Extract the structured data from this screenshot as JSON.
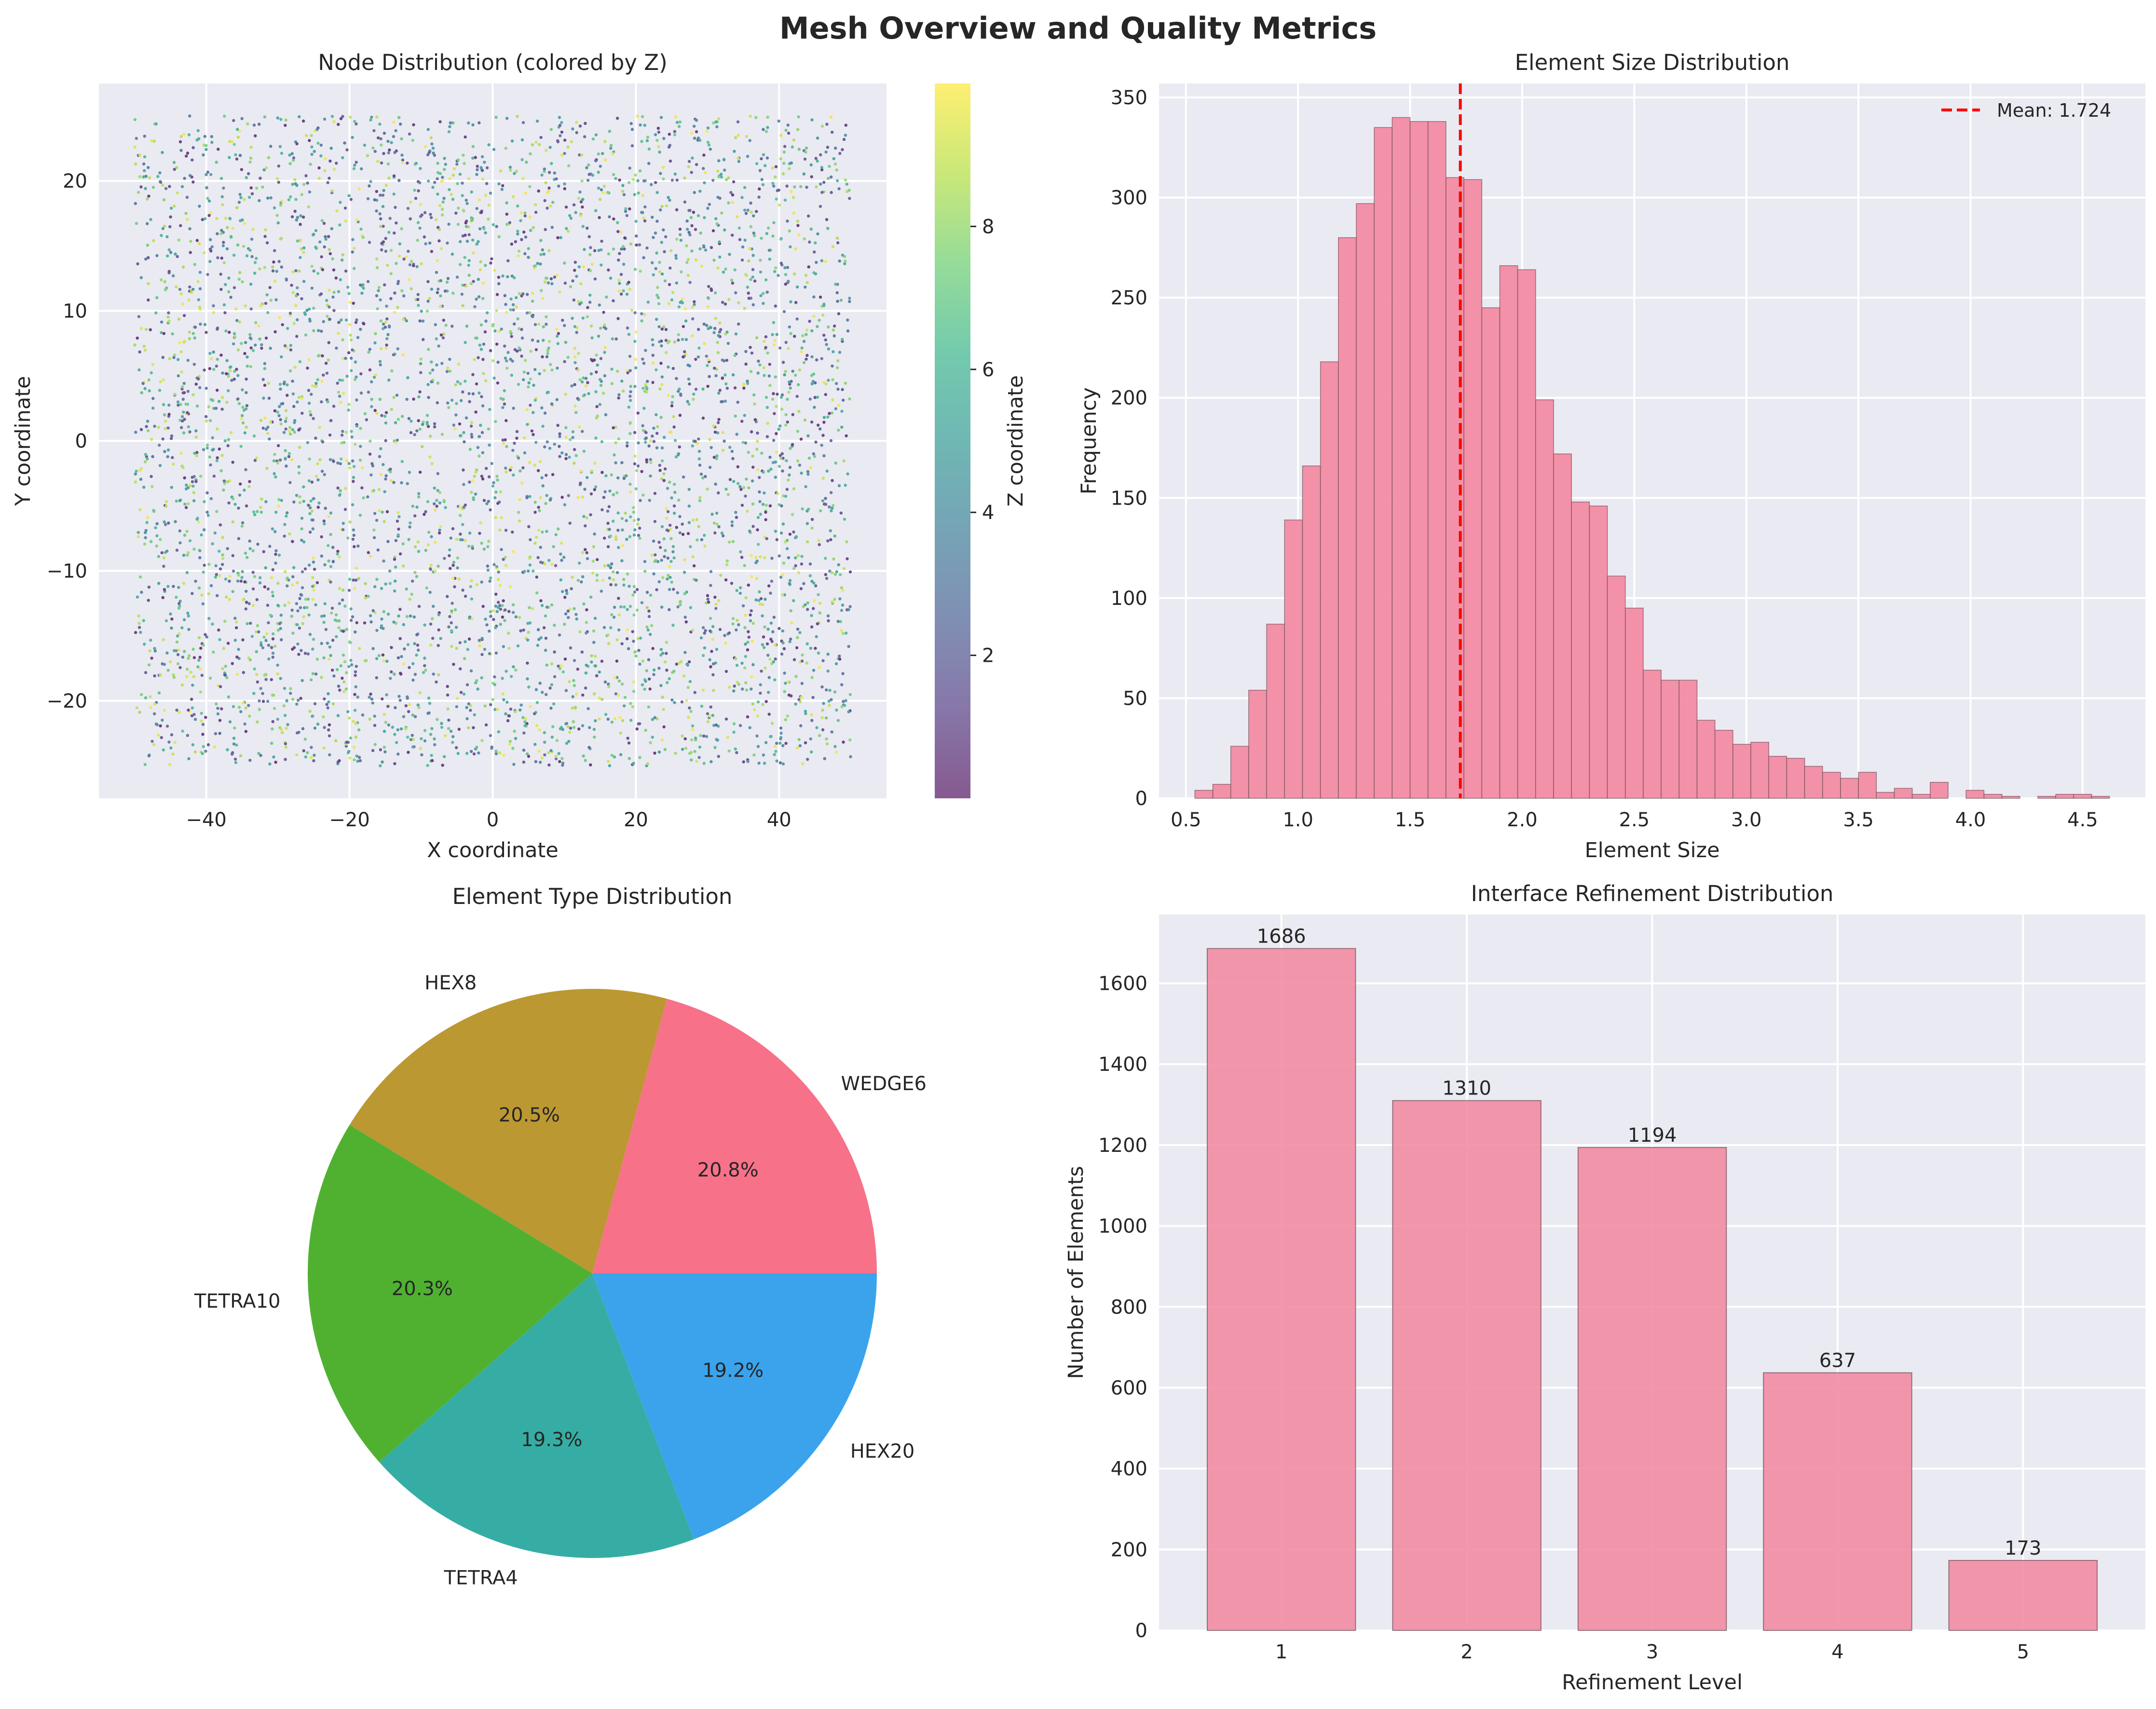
{
  "figure_title": "Mesh Overview and Quality Metrics",
  "colors": {
    "panel_bg": "#eaeaf2",
    "grid": "#ffffff",
    "text": "#262626",
    "bar_fill": "#f28ca3",
    "bar_edge": "#6e4b55",
    "mean_line": "#ff0000"
  },
  "chart_data": [
    {
      "type": "scatter",
      "title": "Node Distribution (colored by Z)",
      "xlabel": "X coordinate",
      "ylabel": "Y coordinate",
      "x_range": [
        -50,
        50
      ],
      "y_range": [
        -25,
        25
      ],
      "z_range": [
        0,
        10
      ],
      "point_count": 5000,
      "xlim": [
        -55,
        55
      ],
      "ylim": [
        -27.5,
        27.5
      ],
      "xticks": [
        -40,
        -20,
        0,
        20,
        40
      ],
      "yticks": [
        -20,
        -10,
        0,
        10,
        20
      ],
      "colormap": "viridis",
      "colorbar": {
        "label": "Z coordinate",
        "ticks": [
          2,
          4,
          6,
          8
        ],
        "range": [
          0.0,
          10.0
        ]
      },
      "grid": true
    },
    {
      "type": "bar",
      "title": "Element Size Distribution",
      "xlabel": "Element Size",
      "ylabel": "Frequency",
      "bin_edges": [
        0.54,
        0.62,
        0.7,
        0.78,
        0.86,
        0.94,
        1.02,
        1.1,
        1.18,
        1.26,
        1.34,
        1.42,
        1.5,
        1.58,
        1.66,
        1.74,
        1.82,
        1.9,
        1.98,
        2.06,
        2.14,
        2.22,
        2.3,
        2.38,
        2.46,
        2.54,
        2.62,
        2.7,
        2.78,
        2.86,
        2.94,
        3.02,
        3.1,
        3.18,
        3.26,
        3.34,
        3.42,
        3.5,
        3.58,
        3.66,
        3.74,
        3.82,
        3.9,
        3.98,
        4.06,
        4.14,
        4.22,
        4.3,
        4.38,
        4.46,
        4.54,
        4.62
      ],
      "values": [
        4,
        7,
        26,
        54,
        87,
        139,
        166,
        218,
        280,
        297,
        335,
        340,
        338,
        338,
        310,
        309,
        245,
        266,
        264,
        199,
        172,
        148,
        146,
        111,
        95,
        64,
        59,
        59,
        39,
        34,
        27,
        28,
        21,
        20,
        16,
        13,
        10,
        13,
        3,
        5,
        2,
        8,
        0,
        4,
        2,
        1,
        0,
        1,
        2,
        2,
        1
      ],
      "xlim": [
        0.38,
        4.78
      ],
      "ylim": [
        0,
        357
      ],
      "xticks": [
        0.5,
        1.0,
        1.5,
        2.0,
        2.5,
        3.0,
        3.5,
        4.0,
        4.5
      ],
      "yticks": [
        0,
        50,
        100,
        150,
        200,
        250,
        300,
        350
      ],
      "mean": 1.724,
      "legend": {
        "label": "Mean: 1.724",
        "placement": "upper right"
      },
      "grid": true
    },
    {
      "type": "pie",
      "title": "Element Type Distribution",
      "slices": [
        {
          "label": "WEDGE6",
          "value": 20.8,
          "pct_label": "20.8%",
          "color": "#f77189"
        },
        {
          "label": "HEX8",
          "value": 20.5,
          "pct_label": "20.5%",
          "color": "#bb9832"
        },
        {
          "label": "TETRA10",
          "value": 20.3,
          "pct_label": "20.3%",
          "color": "#50b131"
        },
        {
          "label": "TETRA4",
          "value": 19.3,
          "pct_label": "19.3%",
          "color": "#36ada4"
        },
        {
          "label": "HEX20",
          "value": 19.2,
          "pct_label": "19.2%",
          "color": "#3ba3ec"
        }
      ],
      "start_angle": 0
    },
    {
      "type": "bar",
      "title": "Interface Refinement Distribution",
      "xlabel": "Refinement Level",
      "ylabel": "Number of Elements",
      "categories": [
        "1",
        "2",
        "3",
        "4",
        "5"
      ],
      "values": [
        1686,
        1310,
        1194,
        637,
        173
      ],
      "value_labels": [
        "1686",
        "1310",
        "1194",
        "637",
        "173"
      ],
      "ylim": [
        0,
        1770
      ],
      "yticks": [
        0,
        200,
        400,
        600,
        800,
        1000,
        1200,
        1400,
        1600
      ],
      "grid": true
    }
  ]
}
